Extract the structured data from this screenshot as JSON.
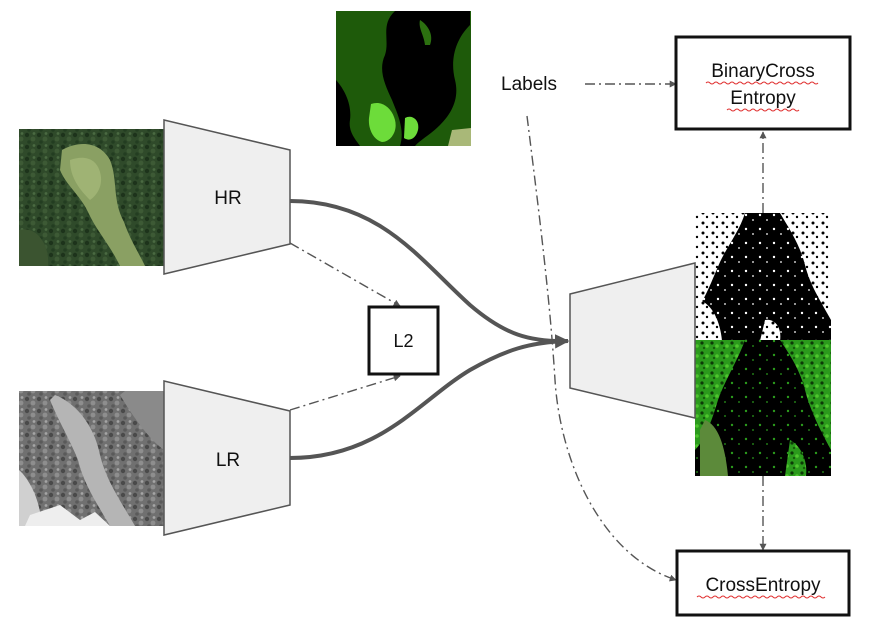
{
  "encoders": {
    "hr": {
      "label": "HR"
    },
    "lr": {
      "label": "LR"
    }
  },
  "boxes": {
    "l2": {
      "label": "L2"
    },
    "bce": {
      "line1": "BinaryCross",
      "line2": "Entropy"
    },
    "ce": {
      "label": "CrossEntropy"
    }
  },
  "labels_text": "Labels",
  "colors": {
    "trapezoid_fill": "#efefef",
    "trapezoid_stroke": "#555555",
    "arrow": "#555555",
    "box_border": "#111111",
    "spellcheck_underline": "#e03030",
    "label_dark_green": "#1e5a0a",
    "label_bright_green": "#6ddc3a",
    "pred_green": "#3aa820"
  },
  "icons": {
    "hr_image": "aerial-photo-color",
    "lr_image": "aerial-photo-grayscale",
    "label_map": "segmentation-label-map",
    "binary_output": "binary-mask-output",
    "class_output": "class-segmentation-output"
  }
}
